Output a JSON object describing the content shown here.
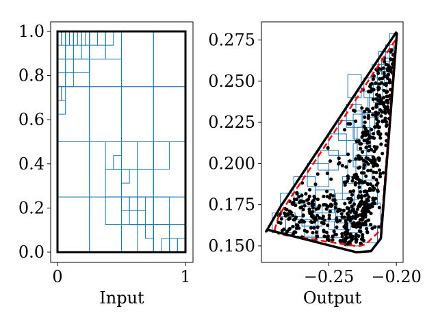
{
  "chart_data": [
    {
      "type": "partition",
      "xlabel": "Input",
      "ylabel": "",
      "xlim": [
        0,
        1
      ],
      "ylim": [
        0,
        1
      ],
      "xticks": [
        {
          "v": 0,
          "label": "0"
        },
        {
          "v": 1,
          "label": "1"
        }
      ],
      "yticks": [
        {
          "v": 0.0,
          "label": "0.0"
        },
        {
          "v": 0.2,
          "label": "0.2"
        },
        {
          "v": 0.4,
          "label": "0.4"
        },
        {
          "v": 0.6,
          "label": "0.6"
        },
        {
          "v": 0.8,
          "label": "0.8"
        },
        {
          "v": 1.0,
          "label": "1.0"
        }
      ],
      "boundary_color": "#000000",
      "cell_color": "#1f77b4",
      "cells": [
        [
          0,
          0,
          0.25,
          0.25
        ],
        [
          0.25,
          0,
          0.5,
          0.25
        ],
        [
          0.5,
          0,
          0.75,
          0.25
        ],
        [
          0.75,
          0,
          1,
          0.25
        ],
        [
          0,
          0.25,
          0.25,
          0.5
        ],
        [
          0.25,
          0.25,
          0.5,
          0.5
        ],
        [
          0.5,
          0.25,
          0.75,
          0.5
        ],
        [
          0.75,
          0.25,
          1,
          0.5
        ],
        [
          0,
          0.5,
          0.25,
          0.75
        ],
        [
          0.25,
          0.5,
          0.5,
          0.75
        ],
        [
          0.5,
          0.5,
          0.75,
          0.75
        ],
        [
          0.75,
          0.5,
          1,
          0.75
        ],
        [
          0,
          0.75,
          0.25,
          1
        ],
        [
          0.25,
          0.75,
          0.5,
          1
        ],
        [
          0.5,
          0.75,
          0.75,
          1
        ],
        [
          0.75,
          0.75,
          1,
          1
        ],
        [
          0.375,
          0.375,
          0.5,
          0.5
        ],
        [
          0.5,
          0.375,
          0.625,
          0.5
        ],
        [
          0.625,
          0.375,
          0.75,
          0.5
        ],
        [
          0.75,
          0.375,
          0.875,
          0.5
        ],
        [
          0.375,
          0.25,
          0.5,
          0.375
        ],
        [
          0.5,
          0.25,
          0.625,
          0.375
        ],
        [
          0.625,
          0.25,
          0.75,
          0.375
        ],
        [
          0.375,
          0.125,
          0.5,
          0.25
        ],
        [
          0.5,
          0.125,
          0.625,
          0.25
        ],
        [
          0.625,
          0.125,
          0.75,
          0.25
        ],
        [
          0.75,
          0.125,
          0.875,
          0.25
        ],
        [
          0.625,
          0.0,
          0.75,
          0.125
        ],
        [
          0.75,
          0.0,
          0.875,
          0.125
        ],
        [
          0.875,
          0.0,
          1,
          0.125
        ],
        [
          0.5,
          0.1875,
          0.5625,
          0.25
        ],
        [
          0.5625,
          0.1875,
          0.625,
          0.25
        ],
        [
          0.5625,
          0.125,
          0.625,
          0.1875
        ],
        [
          0.625,
          0.125,
          0.6875,
          0.1875
        ],
        [
          0.625,
          0.1875,
          0.6875,
          0.25
        ],
        [
          0.6875,
          0.0625,
          0.75,
          0.125
        ],
        [
          0.4375,
          0.375,
          0.5,
          0.4375
        ],
        [
          0.5,
          0.3125,
          0.5625,
          0.375
        ],
        [
          0.875,
          0.0,
          0.9375,
          0.0625
        ],
        [
          0.9375,
          0.0,
          1,
          0.0625
        ],
        [
          0.8125,
          0.0,
          0.875,
          0.0625
        ],
        [
          0,
          0.875,
          0.0625,
          1
        ],
        [
          0.0625,
          0.875,
          0.125,
          1
        ],
        [
          0.125,
          0.875,
          0.1875,
          1
        ],
        [
          0.1875,
          0.875,
          0.25,
          1
        ],
        [
          0,
          0.8125,
          0.0625,
          0.875
        ],
        [
          0.0625,
          0.8125,
          0.125,
          0.875
        ],
        [
          0,
          0.75,
          0.0625,
          0.8125
        ],
        [
          0.0625,
          0.75,
          0.125,
          0.8125
        ],
        [
          0.125,
          0.8125,
          0.25,
          0.875
        ],
        [
          0.25,
          0.875,
          0.375,
          1
        ],
        [
          0.375,
          0.875,
          0.5,
          1
        ],
        [
          0,
          0.6875,
          0.03125,
          0.75
        ],
        [
          0.03125,
          0.6875,
          0.0625,
          0.75
        ],
        [
          0,
          0.625,
          0.0625,
          0.6875
        ],
        [
          0,
          0.9375,
          0.03125,
          1
        ],
        [
          0.03125,
          0.9375,
          0.0625,
          1
        ],
        [
          0.0625,
          0.9375,
          0.09375,
          1
        ],
        [
          0.09375,
          0.9375,
          0.125,
          1
        ],
        [
          0.125,
          0.9375,
          0.15625,
          1
        ],
        [
          0.15625,
          0.9375,
          0.1875,
          1
        ],
        [
          0.1875,
          0.9375,
          0.21875,
          1
        ],
        [
          0.21875,
          0.9375,
          0.25,
          1
        ],
        [
          0.25,
          0.9375,
          0.3125,
          1
        ],
        [
          0.3125,
          0.9375,
          0.375,
          1
        ],
        [
          0.375,
          0.9375,
          0.4375,
          1
        ]
      ]
    },
    {
      "type": "scatter",
      "xlabel": "Output",
      "ylabel": "",
      "xlim": [
        -0.3,
        -0.195
      ],
      "ylim": [
        0.14,
        0.286
      ],
      "xticks": [
        {
          "v": -0.25,
          "label": "−0.25"
        },
        {
          "v": -0.2,
          "label": "−0.20"
        }
      ],
      "yticks": [
        {
          "v": 0.15,
          "label": "0.150"
        },
        {
          "v": 0.175,
          "label": "0.175"
        },
        {
          "v": 0.2,
          "label": "0.200"
        },
        {
          "v": 0.225,
          "label": "0.225"
        },
        {
          "v": 0.25,
          "label": "0.250"
        },
        {
          "v": 0.275,
          "label": "0.275"
        }
      ],
      "hull_outer": {
        "color": "#000000",
        "points": [
          [
            -0.2965,
            0.1588
          ],
          [
            -0.2853,
            0.1745
          ],
          [
            -0.2003,
            0.2795
          ],
          [
            -0.1996,
            0.2789
          ],
          [
            -0.2115,
            0.1545
          ],
          [
            -0.2188,
            0.1468
          ],
          [
            -0.2297,
            0.1462
          ],
          [
            -0.2952,
            0.1598
          ]
        ]
      },
      "hull_dashed": {
        "color": "#ff0000",
        "points": [
          [
            -0.2903,
            0.1594
          ],
          [
            -0.2871,
            0.1684
          ],
          [
            -0.2004,
            0.2754
          ],
          [
            -0.2115,
            0.1598
          ],
          [
            -0.2227,
            0.151
          ],
          [
            -0.2283,
            0.1497
          ],
          [
            -0.2871,
            0.1572
          ]
        ]
      },
      "boxes_color": "#1f77b4",
      "boxes": [
        [
          -0.205,
          0.27,
          -0.2,
          0.279
        ],
        [
          -0.208,
          0.262,
          -0.202,
          0.272
        ],
        [
          -0.211,
          0.254,
          -0.205,
          0.264
        ],
        [
          -0.214,
          0.245,
          -0.207,
          0.256
        ],
        [
          -0.217,
          0.237,
          -0.21,
          0.248
        ],
        [
          -0.221,
          0.228,
          -0.213,
          0.24
        ],
        [
          -0.225,
          0.218,
          -0.216,
          0.231
        ],
        [
          -0.229,
          0.208,
          -0.219,
          0.222
        ],
        [
          -0.232,
          0.198,
          -0.222,
          0.212
        ],
        [
          -0.236,
          0.188,
          -0.225,
          0.202
        ],
        [
          -0.24,
          0.178,
          -0.228,
          0.192
        ],
        [
          -0.245,
          0.168,
          -0.231,
          0.182
        ],
        [
          -0.25,
          0.16,
          -0.234,
          0.172
        ],
        [
          -0.258,
          0.155,
          -0.238,
          0.166
        ],
        [
          -0.268,
          0.155,
          -0.246,
          0.165
        ],
        [
          -0.282,
          0.156,
          -0.26,
          0.166
        ],
        [
          -0.292,
          0.158,
          -0.275,
          0.17
        ],
        [
          -0.286,
          0.168,
          -0.27,
          0.182
        ],
        [
          -0.276,
          0.176,
          -0.26,
          0.192
        ],
        [
          -0.266,
          0.186,
          -0.25,
          0.2
        ],
        [
          -0.258,
          0.196,
          -0.243,
          0.208
        ],
        [
          -0.25,
          0.205,
          -0.237,
          0.218
        ],
        [
          -0.243,
          0.214,
          -0.231,
          0.226
        ],
        [
          -0.237,
          0.222,
          -0.226,
          0.236
        ],
        [
          -0.23,
          0.232,
          -0.22,
          0.244
        ],
        [
          -0.224,
          0.24,
          -0.214,
          0.252
        ],
        [
          -0.218,
          0.249,
          -0.209,
          0.26
        ],
        [
          -0.213,
          0.258,
          -0.205,
          0.268
        ],
        [
          -0.226,
          0.152,
          -0.214,
          0.162
        ],
        [
          -0.238,
          0.15,
          -0.226,
          0.158
        ],
        [
          -0.222,
          0.162,
          -0.212,
          0.176
        ],
        [
          -0.226,
          0.175,
          -0.214,
          0.19
        ],
        [
          -0.23,
          0.19,
          -0.218,
          0.205
        ],
        [
          -0.244,
          0.164,
          -0.232,
          0.178
        ],
        [
          -0.26,
          0.17,
          -0.246,
          0.184
        ],
        [
          -0.27,
          0.162,
          -0.255,
          0.174
        ],
        [
          -0.236,
          0.24,
          -0.226,
          0.254
        ],
        [
          -0.232,
          0.215,
          -0.22,
          0.23
        ]
      ],
      "points_color": "#000000",
      "generator": {
        "seed": 7,
        "count": 650
      }
    }
  ]
}
